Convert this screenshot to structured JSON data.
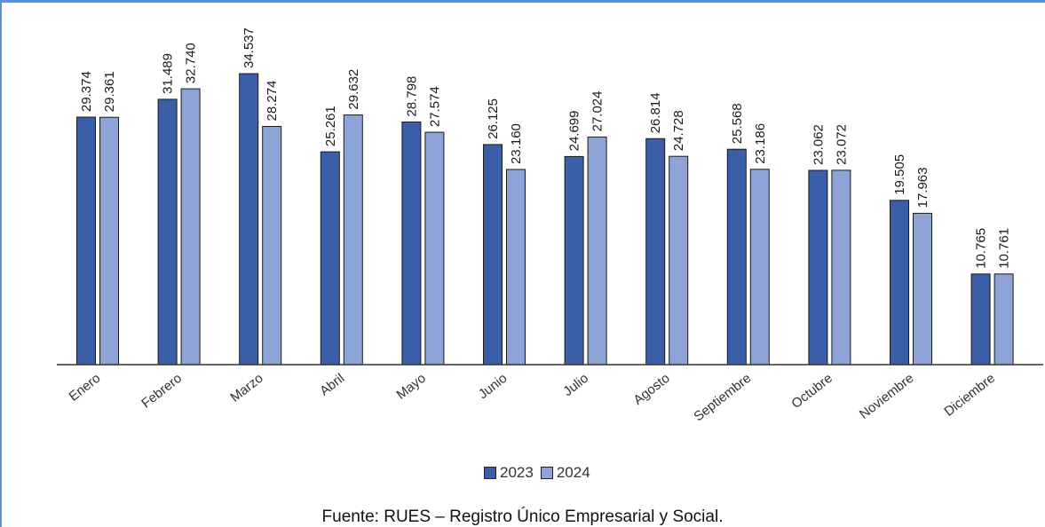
{
  "chart_data": {
    "type": "bar",
    "categories": [
      "Enero",
      "Febrero",
      "Marzo",
      "Abril",
      "Mayo",
      "Junio",
      "Julio",
      "Agosto",
      "Septiembre",
      "Octubre",
      "Noviembre",
      "Diciembre"
    ],
    "series": [
      {
        "name": "2023",
        "color": "#3a5fa8",
        "values": [
          29374,
          31489,
          34537,
          25261,
          28798,
          26125,
          24699,
          26814,
          25568,
          23062,
          19505,
          10765
        ],
        "labels": [
          "29.374",
          "31.489",
          "34.537",
          "25.261",
          "28.798",
          "26.125",
          "24.699",
          "26.814",
          "25.568",
          "23.062",
          "19.505",
          "10.765"
        ]
      },
      {
        "name": "2024",
        "color": "#8ea3d6",
        "values": [
          29361,
          32740,
          28274,
          29632,
          27574,
          23160,
          27024,
          24728,
          23186,
          23072,
          17963,
          10761
        ],
        "labels": [
          "29.361",
          "32.740",
          "28.274",
          "29.632",
          "27.574",
          "23.160",
          "27.024",
          "24.728",
          "23.186",
          "23.072",
          "17.963",
          "10.761"
        ]
      }
    ],
    "ylim": [
      0,
      34537
    ],
    "grid": false,
    "legend_position": "bottom"
  },
  "legend": {
    "items": [
      "2023",
      "2024"
    ]
  },
  "source": "Fuente: RUES – Registro Único Empresarial y Social."
}
